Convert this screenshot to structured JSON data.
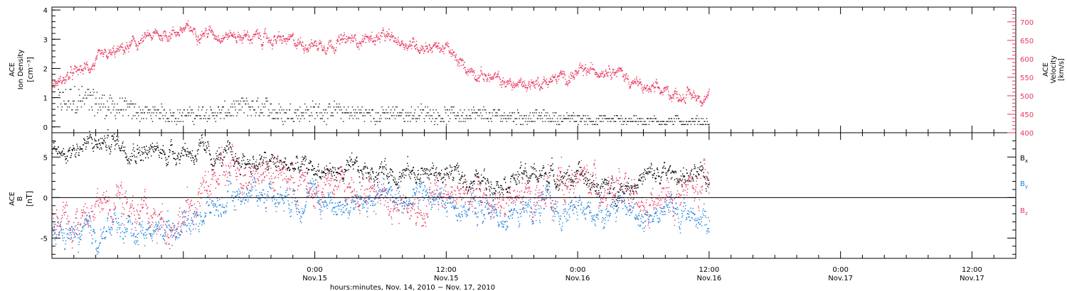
{
  "chart_data": [
    {
      "type": "scatter",
      "ylabel_left": [
        "ACE",
        "Ion Density",
        "[cm⁻³]"
      ],
      "ylabel_right": [
        "ACE",
        "Velocity",
        "[km/s]"
      ],
      "ylim_left": [
        -0.2,
        4.1
      ],
      "yticks_left": [
        "0",
        "1",
        "2",
        "3",
        "4"
      ],
      "ylim_right": [
        400,
        740
      ],
      "yticks_right": [
        "400",
        "450",
        "500",
        "550",
        "600",
        "650",
        "700"
      ],
      "x_range_hours": [
        -24,
        64
      ],
      "data_end_hour": 36,
      "series": [
        {
          "color": "#222222",
          "axis": "left",
          "x": [
            -23.5,
            -21,
            -18,
            -15,
            -12,
            -9,
            -6,
            -3,
            0,
            3,
            6,
            9,
            12,
            15,
            18,
            21,
            24,
            27,
            30,
            33,
            36
          ],
          "values": [
            1.0,
            1.1,
            0.8,
            0.55,
            0.5,
            0.55,
            0.8,
            0.6,
            0.65,
            0.6,
            0.5,
            0.55,
            0.5,
            0.45,
            0.45,
            0.4,
            0.35,
            0.3,
            0.3,
            0.25,
            0.25
          ]
        },
        {
          "color": "#e8375e",
          "axis": "right",
          "x": [
            -24,
            -22,
            -20,
            -18,
            -15,
            -12,
            -9,
            -6,
            -3,
            0,
            3,
            6,
            9,
            12,
            13,
            15,
            18,
            21,
            24,
            27,
            30,
            33,
            36
          ],
          "values": [
            530,
            560,
            590,
            620,
            660,
            680,
            670,
            660,
            650,
            640,
            650,
            660,
            640,
            630,
            590,
            560,
            530,
            540,
            560,
            580,
            520,
            505,
            500
          ]
        }
      ]
    },
    {
      "type": "scatter",
      "ylabel_left": [
        "ACE",
        "B",
        "[nT]"
      ],
      "ylim": [
        -7.5,
        8
      ],
      "yticks": [
        "-5",
        "0",
        "5"
      ],
      "zero_line": true,
      "x_range_hours": [
        -24,
        64
      ],
      "legend": [
        {
          "label": "B",
          "sub": "x",
          "color": "#000000"
        },
        {
          "label": "B",
          "sub": "y",
          "color": "#1a7fdb"
        },
        {
          "label": "B",
          "sub": "z",
          "color": "#e8375e"
        }
      ],
      "series": [
        {
          "color": "#000000",
          "x": [
            -24,
            -21,
            -18,
            -15,
            -12,
            -9,
            -6,
            -3,
            0,
            3,
            6,
            9,
            12,
            15,
            18,
            21,
            24,
            27,
            30,
            33,
            36
          ],
          "values": [
            5.5,
            6.5,
            7.0,
            5.5,
            6.0,
            5.0,
            4.5,
            4.0,
            3.5,
            3.0,
            3.5,
            3.0,
            3.0,
            2.0,
            2.5,
            3.0,
            2.5,
            1.0,
            2.5,
            3.0,
            2.0
          ]
        },
        {
          "color": "#1a7fdb",
          "x": [
            -24,
            -21,
            -18,
            -15,
            -12,
            -9,
            -6,
            -3,
            0,
            3,
            6,
            9,
            12,
            15,
            18,
            21,
            24,
            27,
            30,
            33,
            36
          ],
          "values": [
            -4.0,
            -5.0,
            -3.5,
            -4.0,
            -3.0,
            -1.0,
            1.0,
            0.5,
            0.0,
            -1.0,
            0.0,
            0.5,
            -0.5,
            -1.5,
            -2.0,
            -1.0,
            -2.0,
            -1.0,
            -2.0,
            -1.5,
            -2.5
          ]
        },
        {
          "color": "#e8375e",
          "x": [
            -24,
            -21,
            -18,
            -15,
            -12,
            -9,
            -6,
            -3,
            0,
            3,
            6,
            9,
            12,
            15,
            18,
            21,
            24,
            27,
            30,
            33,
            36
          ],
          "values": [
            -1.0,
            -3.0,
            1.5,
            -3.0,
            -2.5,
            2.5,
            4.0,
            3.0,
            0.5,
            2.0,
            1.0,
            -1.5,
            0.5,
            0.0,
            -1.0,
            1.0,
            2.0,
            1.5,
            -2.0,
            0.5,
            1.0
          ]
        }
      ],
      "x_ticks": [
        {
          "hour": 0,
          "label": "0:00",
          "date": "Nov.15"
        },
        {
          "hour": 12,
          "label": "12:00",
          "date": "Nov.15"
        },
        {
          "hour": 24,
          "label": "0:00",
          "date": "Nov.16"
        },
        {
          "hour": 36,
          "label": "12:00",
          "date": "Nov.16"
        },
        {
          "hour": 48,
          "label": "0:00",
          "date": "Nov.17"
        },
        {
          "hour": 60,
          "label": "12:00",
          "date": "Nov.17"
        }
      ],
      "xlabel": "hours:minutes, Nov. 14, 2010 − Nov. 17, 2010"
    }
  ]
}
